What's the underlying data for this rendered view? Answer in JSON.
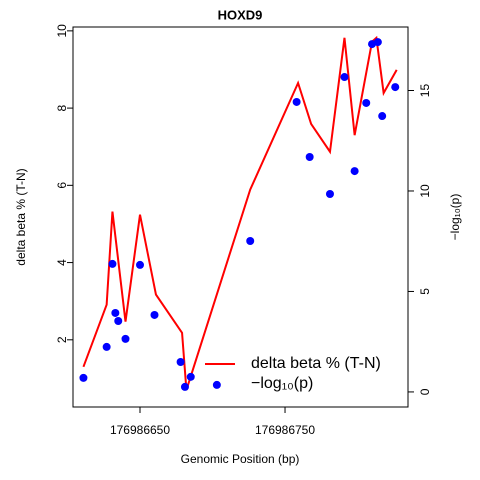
{
  "chart_data": {
    "type": "line",
    "title": "HOXD9",
    "x_label": "Genomic Position (bp)",
    "y_label": "delta beta % (T-N)",
    "y2_label": "−log₁₀(p)",
    "xlim": [
      176986603.8,
      176986834.8
    ],
    "xticks": [
      176986650,
      176986750
    ],
    "ylim": [
      0.26,
      10.1
    ],
    "yticks": [
      2,
      4,
      6,
      8,
      10
    ],
    "y2lim": [
      -0.75,
      18.16
    ],
    "y2ticks": [
      0,
      5,
      10,
      15
    ],
    "legend": "bottom-right",
    "series": [
      {
        "name": "delta beta % (T-N)",
        "type": "line",
        "color": "#ff0000",
        "x": [
          176986611,
          176986627,
          176986631,
          176986640,
          176986650,
          176986661,
          176986679,
          176986682,
          176986726,
          176986759,
          176986768,
          176986781,
          176986791,
          176986798,
          176986810,
          176986813,
          176986818,
          176986827
        ],
        "values": [
          1.3,
          2.91,
          5.32,
          2.47,
          5.24,
          3.17,
          2.18,
          0.7,
          5.89,
          8.65,
          7.59,
          6.87,
          9.82,
          7.3,
          9.72,
          9.82,
          8.39,
          8.99
        ]
      },
      {
        "name": "−log₁₀(p)",
        "type": "scatter",
        "axis": "y2",
        "color": "#0000ff",
        "x": [
          176986611,
          176986627,
          176986631,
          176986633,
          176986635,
          176986640,
          176986650,
          176986660,
          176986678,
          176986681,
          176986685,
          176986703,
          176986726,
          176986758,
          176986767,
          176986781,
          176986791,
          176986798,
          176986806,
          176986810,
          176986814,
          176986817,
          176986826
        ],
        "values": [
          0.7,
          2.24,
          6.37,
          3.93,
          3.53,
          2.64,
          6.32,
          3.83,
          1.49,
          0.25,
          0.75,
          0.35,
          7.51,
          14.43,
          11.69,
          9.85,
          15.67,
          10.99,
          14.38,
          17.31,
          17.41,
          13.73,
          15.17
        ]
      }
    ]
  }
}
